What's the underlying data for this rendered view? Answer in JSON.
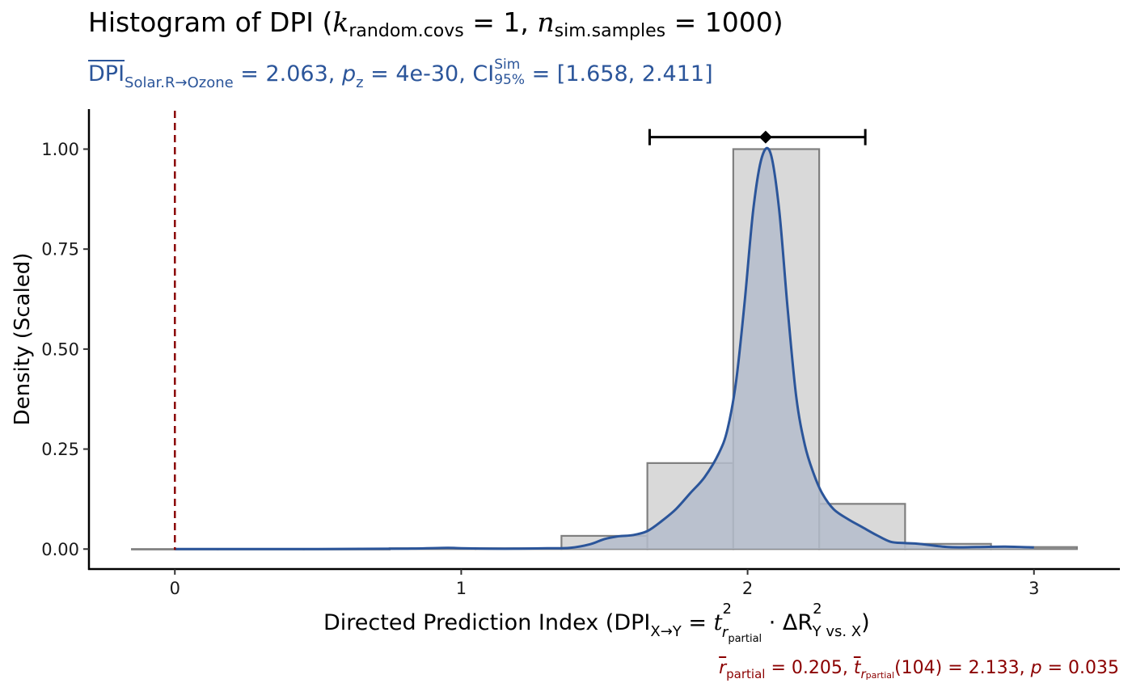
{
  "title": {
    "main": "Histogram of DPI (",
    "k": "k",
    "k_sub": "random.covs",
    "k_eq": " = 1, ",
    "n": "n",
    "n_sub": "sim.samples",
    "n_eq": " = 1000)"
  },
  "subtitle": {
    "dpi": "DPI",
    "dpi_sub": "Solar.R→Ozone",
    "dpi_val": " = 2.063, ",
    "p": "p",
    "p_sub": "z",
    "p_val": " = 4e-30, ",
    "ci": "CI",
    "ci_sup": "Sim",
    "ci_sub": "95%",
    "ci_val": " = [1.658, 2.411]"
  },
  "footnote": {
    "r": "r",
    "r_sub": "partial",
    "r_val": " = 0.205, ",
    "t": "t",
    "t_sub": "r",
    "t_subsub": "partial",
    "t_val": "(104) = 2.133, ",
    "p": "p",
    "p_val": " = 0.035"
  },
  "chart_data": {
    "type": "bar",
    "title": "Histogram of DPI (k random.covs = 1, n sim.samples = 1000)",
    "xlabel": "Directed Prediction Index (DPI X→Y = t² r partial · ΔR² Y vs. X)",
    "ylabel": "Density (Scaled)",
    "xlim": [
      -0.3,
      3.3
    ],
    "ylim": [
      -0.05,
      1.1
    ],
    "x_ticks": [
      0,
      1,
      2,
      3
    ],
    "y_ticks": [
      0.0,
      0.25,
      0.5,
      0.75,
      1.0
    ],
    "y_tick_labels": [
      "0.00",
      "0.25",
      "0.50",
      "0.75",
      "1.00"
    ],
    "histogram": {
      "bin_width": 0.3,
      "bins": [
        {
          "x0": -0.15,
          "x1": 0.15,
          "value": 0.0
        },
        {
          "x0": 0.15,
          "x1": 0.45,
          "value": 0.0
        },
        {
          "x0": 0.45,
          "x1": 0.75,
          "value": 0.0
        },
        {
          "x0": 0.75,
          "x1": 1.05,
          "value": 0.002
        },
        {
          "x0": 1.05,
          "x1": 1.35,
          "value": 0.002
        },
        {
          "x0": 1.35,
          "x1": 1.65,
          "value": 0.033
        },
        {
          "x0": 1.65,
          "x1": 1.95,
          "value": 0.215
        },
        {
          "x0": 1.95,
          "x1": 2.25,
          "value": 1.0
        },
        {
          "x0": 2.25,
          "x1": 2.55,
          "value": 0.113
        },
        {
          "x0": 2.55,
          "x1": 2.85,
          "value": 0.013
        },
        {
          "x0": 2.85,
          "x1": 3.15,
          "value": 0.005
        }
      ],
      "fill": "#d9d9d9",
      "stroke": "#7f7f7f"
    },
    "density": {
      "color": "#2b559a",
      "fill": "#b4bccb",
      "x": [
        0.0,
        0.5,
        0.8,
        0.95,
        1.0,
        1.1,
        1.2,
        1.3,
        1.38,
        1.45,
        1.5,
        1.55,
        1.6,
        1.65,
        1.7,
        1.75,
        1.8,
        1.85,
        1.9,
        1.93,
        1.96,
        1.99,
        2.02,
        2.05,
        2.08,
        2.11,
        2.14,
        2.17,
        2.2,
        2.23,
        2.26,
        2.3,
        2.35,
        2.4,
        2.45,
        2.5,
        2.55,
        2.6,
        2.7,
        2.8,
        2.9,
        3.0
      ],
      "y": [
        0.0,
        0.0,
        0.001,
        0.003,
        0.002,
        0.001,
        0.001,
        0.002,
        0.003,
        0.012,
        0.025,
        0.032,
        0.035,
        0.045,
        0.07,
        0.1,
        0.14,
        0.18,
        0.24,
        0.3,
        0.42,
        0.62,
        0.85,
        0.98,
        0.99,
        0.85,
        0.6,
        0.38,
        0.26,
        0.19,
        0.14,
        0.1,
        0.075,
        0.055,
        0.035,
        0.018,
        0.015,
        0.013,
        0.005,
        0.005,
        0.006,
        0.004
      ]
    },
    "estimate": {
      "point": 2.063,
      "ci_low": 1.658,
      "ci_high": 2.411,
      "y": 1.03,
      "color": "#000000"
    },
    "reference_line": {
      "x": 0,
      "color": "#8b0000",
      "style": "dashed"
    },
    "grid": false
  }
}
